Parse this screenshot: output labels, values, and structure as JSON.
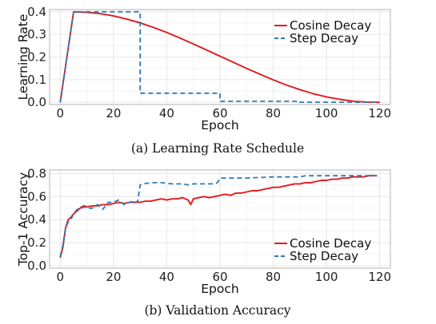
{
  "colors": {
    "cosine": "#e41a1c",
    "step": "#2b7bba"
  },
  "chart_data": [
    {
      "type": "line",
      "caption": "(a) Learning Rate Schedule",
      "xlabel": "Epoch",
      "ylabel": "Learning Rate",
      "xlim": [
        -4,
        124
      ],
      "ylim": [
        -0.01,
        0.41
      ],
      "xticks": [
        0,
        20,
        40,
        60,
        80,
        100,
        120
      ],
      "yticks": [
        0.0,
        0.1,
        0.2,
        0.3,
        0.4
      ],
      "ytick_labels": [
        "0.0",
        "0.1",
        "0.2",
        "0.3",
        "0.4"
      ],
      "grid": true,
      "legend_position": "top-right",
      "series": [
        {
          "name": "Cosine Decay",
          "style": "solid",
          "color": "#e41a1c",
          "x": [
            0,
            5,
            10,
            15,
            20,
            25,
            30,
            35,
            40,
            45,
            50,
            55,
            60,
            65,
            70,
            75,
            80,
            85,
            90,
            95,
            100,
            105,
            110,
            115,
            120
          ],
          "y": [
            0.0,
            0.4,
            0.398,
            0.392,
            0.382,
            0.368,
            0.351,
            0.331,
            0.309,
            0.284,
            0.258,
            0.231,
            0.204,
            0.177,
            0.15,
            0.124,
            0.099,
            0.076,
            0.056,
            0.038,
            0.024,
            0.013,
            0.005,
            0.001,
            0.0
          ]
        },
        {
          "name": "Step Decay",
          "style": "dashed",
          "color": "#2b7bba",
          "x": [
            0,
            5,
            30,
            30,
            60,
            60,
            90,
            90,
            120
          ],
          "y": [
            0.0,
            0.4,
            0.4,
            0.04,
            0.04,
            0.004,
            0.004,
            0.0004,
            0.0004
          ]
        }
      ]
    },
    {
      "type": "line",
      "caption": "(b) Validation Accuracy",
      "xlabel": "Epoch",
      "ylabel": "Top-1 Accuracy",
      "xlim": [
        -4,
        124
      ],
      "ylim": [
        -0.02,
        0.83
      ],
      "xticks": [
        0,
        20,
        40,
        60,
        80,
        100,
        120
      ],
      "yticks": [
        0.0,
        0.2,
        0.4,
        0.6,
        0.8
      ],
      "ytick_labels": [
        "0.0",
        "0.2",
        "0.4",
        "0.6",
        "0.8"
      ],
      "grid": true,
      "legend_position": "bottom-right",
      "series": [
        {
          "name": "Cosine Decay",
          "style": "solid",
          "color": "#e41a1c",
          "x": [
            0,
            1,
            2,
            3,
            4,
            5,
            6,
            7,
            8,
            9,
            10,
            12,
            14,
            16,
            18,
            20,
            22,
            24,
            26,
            28,
            30,
            32,
            34,
            36,
            38,
            40,
            42,
            44,
            46,
            48,
            49,
            50,
            52,
            54,
            56,
            58,
            60,
            62,
            64,
            66,
            68,
            70,
            72,
            74,
            76,
            78,
            80,
            82,
            84,
            86,
            88,
            90,
            92,
            94,
            96,
            98,
            100,
            102,
            104,
            106,
            108,
            110,
            112,
            114,
            116,
            118,
            119
          ],
          "y": [
            0.07,
            0.16,
            0.33,
            0.4,
            0.42,
            0.45,
            0.47,
            0.49,
            0.51,
            0.52,
            0.51,
            0.52,
            0.52,
            0.53,
            0.53,
            0.54,
            0.55,
            0.54,
            0.55,
            0.55,
            0.55,
            0.56,
            0.56,
            0.57,
            0.58,
            0.57,
            0.58,
            0.58,
            0.59,
            0.57,
            0.53,
            0.58,
            0.59,
            0.6,
            0.59,
            0.6,
            0.61,
            0.62,
            0.61,
            0.63,
            0.63,
            0.64,
            0.65,
            0.65,
            0.66,
            0.67,
            0.68,
            0.68,
            0.69,
            0.7,
            0.71,
            0.71,
            0.72,
            0.72,
            0.73,
            0.74,
            0.74,
            0.75,
            0.75,
            0.76,
            0.76,
            0.77,
            0.77,
            0.77,
            0.78,
            0.78,
            0.78
          ]
        },
        {
          "name": "Step Decay",
          "style": "dashed",
          "color": "#2b7bba",
          "x": [
            0,
            1,
            2,
            3,
            4,
            5,
            6,
            7,
            8,
            9,
            10,
            12,
            14,
            16,
            18,
            20,
            22,
            24,
            26,
            28,
            29,
            30,
            31,
            34,
            38,
            42,
            46,
            48,
            50,
            54,
            58,
            59,
            60,
            64,
            70,
            80,
            90,
            92,
            100,
            110,
            119
          ],
          "y": [
            0.08,
            0.18,
            0.33,
            0.38,
            0.4,
            0.45,
            0.48,
            0.5,
            0.5,
            0.51,
            0.5,
            0.5,
            0.53,
            0.49,
            0.55,
            0.55,
            0.57,
            0.53,
            0.55,
            0.56,
            0.55,
            0.7,
            0.71,
            0.72,
            0.72,
            0.71,
            0.71,
            0.7,
            0.71,
            0.71,
            0.71,
            0.72,
            0.76,
            0.76,
            0.76,
            0.77,
            0.77,
            0.78,
            0.78,
            0.78,
            0.78
          ]
        }
      ]
    }
  ]
}
